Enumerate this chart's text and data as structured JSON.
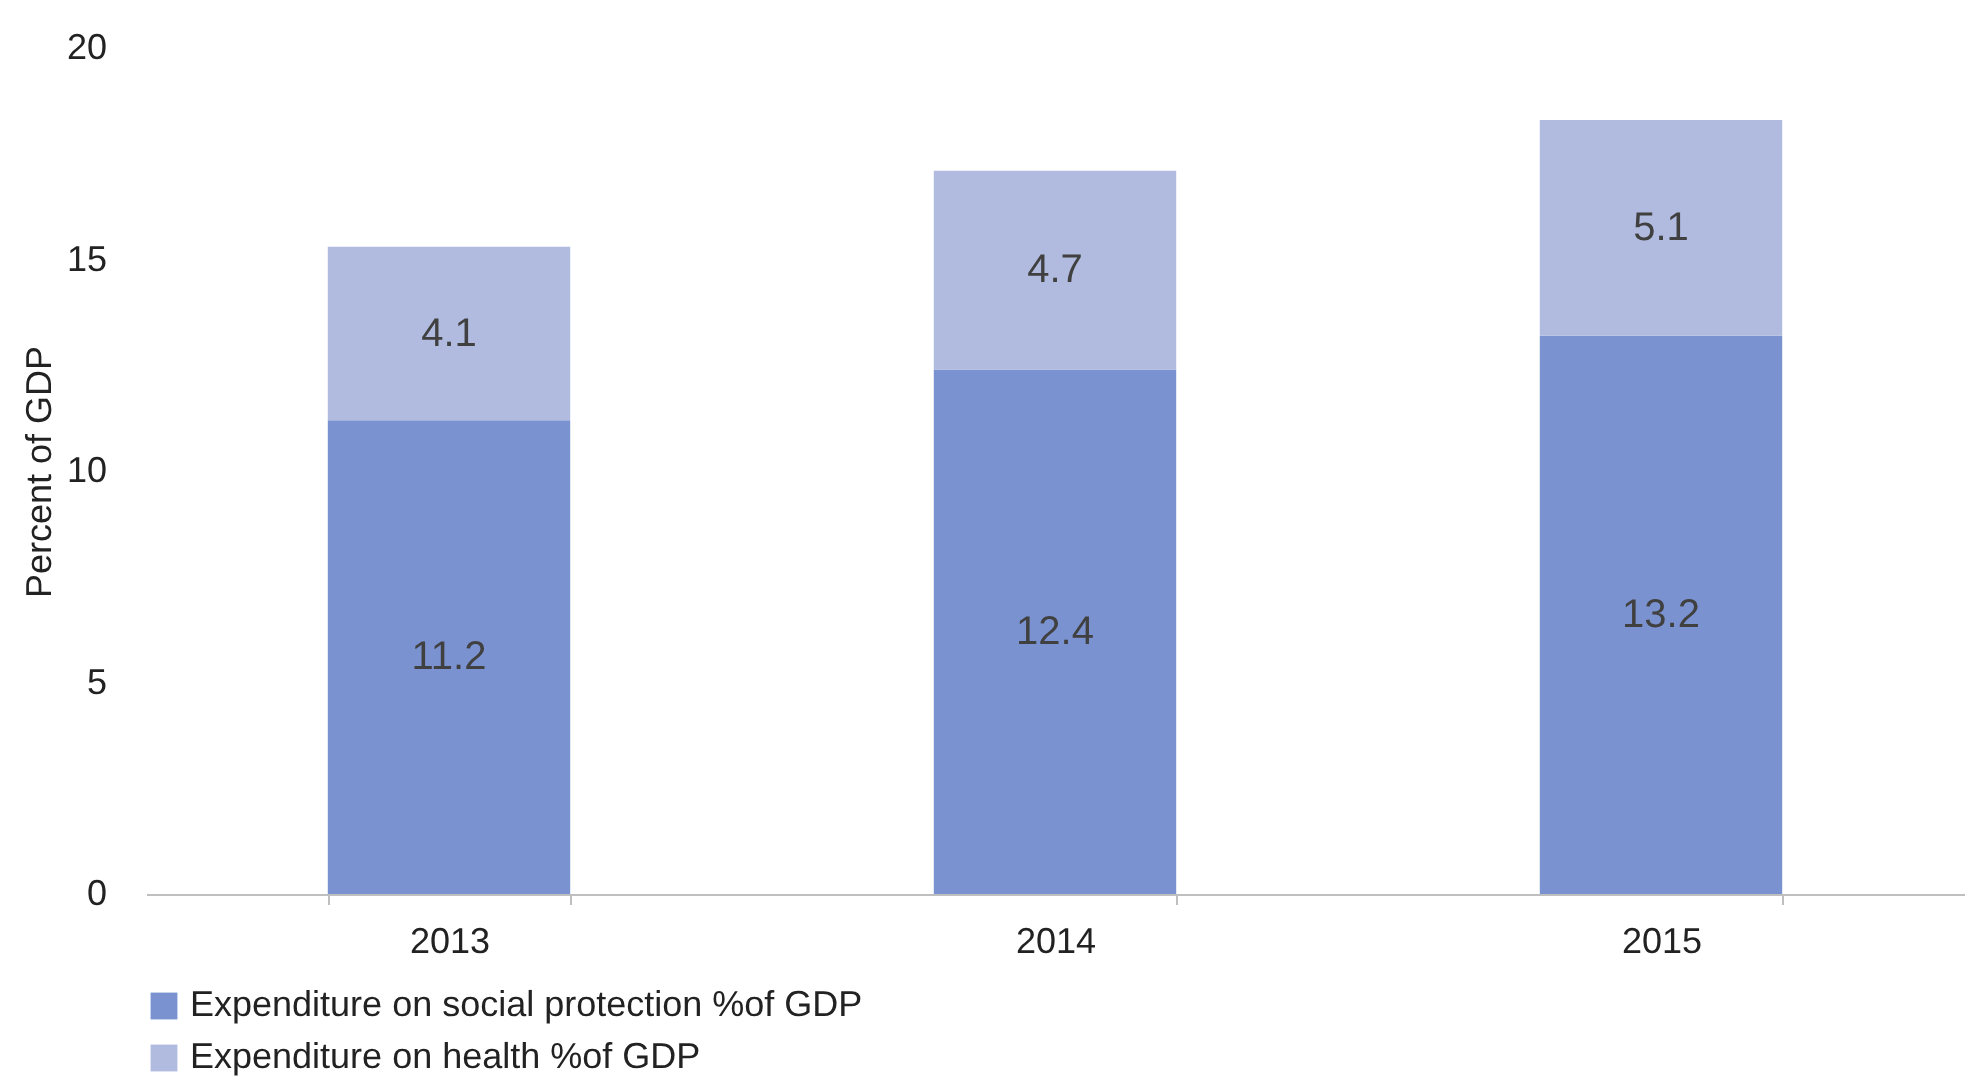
{
  "chart_data": {
    "type": "bar",
    "stacked": true,
    "ylabel": "Percent of GDP",
    "categories": [
      "2013",
      "2014",
      "2015"
    ],
    "series": [
      {
        "name": "Expenditure on social protection %of GDP",
        "color": "#7a93d0",
        "values": [
          11.2,
          12.4,
          13.2
        ]
      },
      {
        "name": "Expenditure on health %of GDP",
        "color": "#b1bbdf",
        "values": [
          4.1,
          4.7,
          5.1
        ]
      }
    ],
    "ylim": [
      0,
      20
    ],
    "yticks": [
      0,
      5,
      10,
      15,
      20
    ],
    "grid": false,
    "legend": "bottom",
    "data_labels": true
  }
}
